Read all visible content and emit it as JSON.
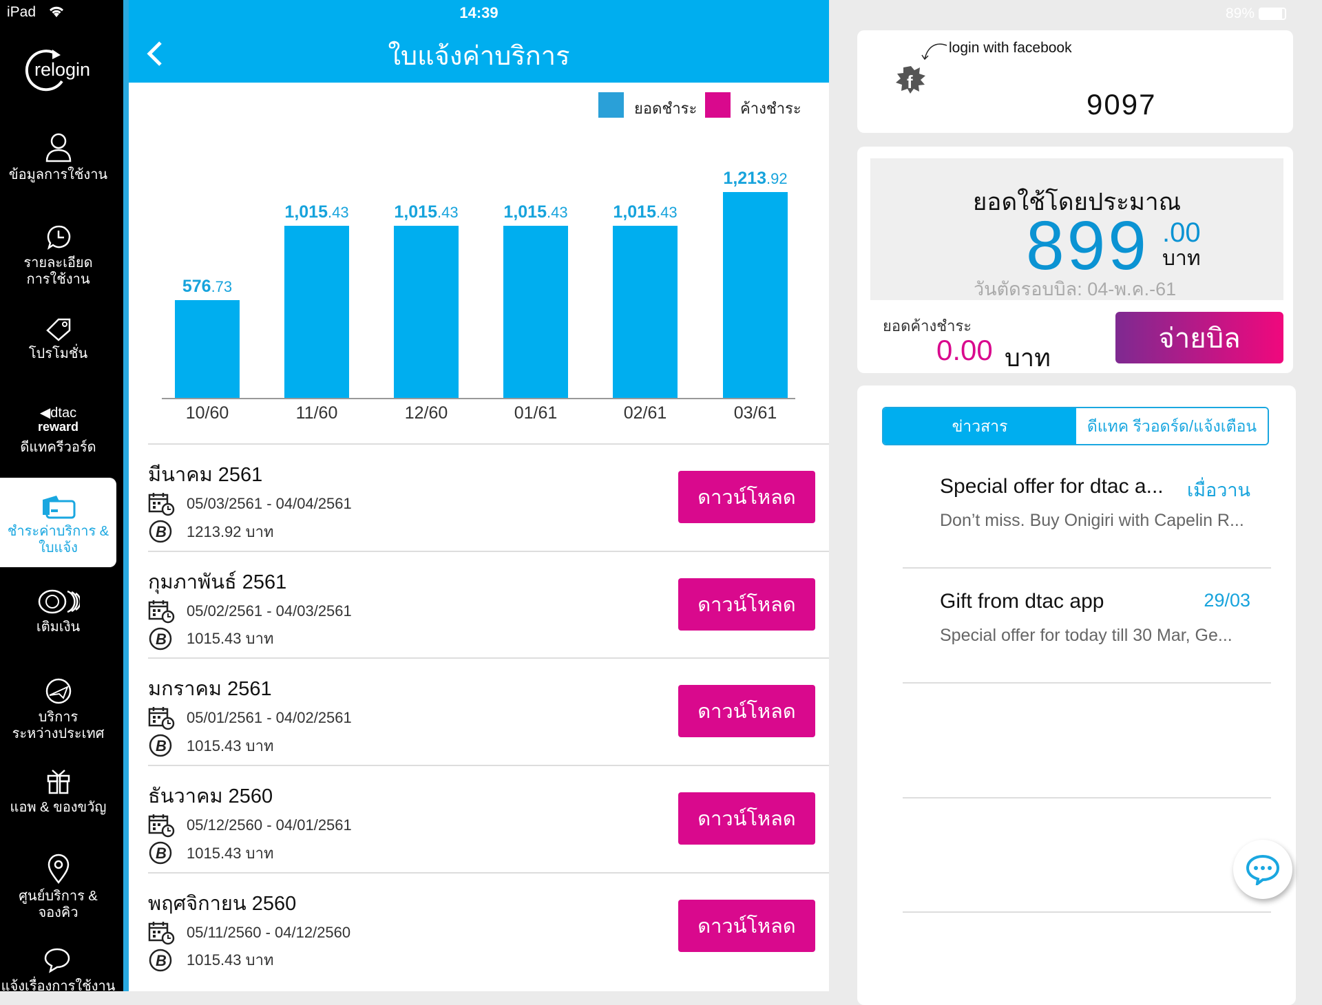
{
  "status_bar": {
    "device": "iPad",
    "time": "14:39",
    "battery": "89%"
  },
  "sidebar": {
    "relogin": "relogin",
    "items": [
      {
        "label": "ข้อมูลการใช้งาน",
        "icon": "user-icon"
      },
      {
        "label": "รายละเอียด",
        "label2": "การใช้งาน",
        "icon": "clock-chat-icon"
      },
      {
        "label": "โปรโมชั่น",
        "icon": "tag-icon"
      },
      {
        "logo_top": "dtac",
        "logo_bottom": "reward",
        "label": "ดีแทครีวอร์ด",
        "icon": "dtac-reward-logo"
      },
      {
        "label": "ชำระค่าบริการ &",
        "label2": "ใบแจ้ง",
        "icon": "card-icon",
        "active": true
      },
      {
        "label": "เติมเงิน",
        "icon": "coins-icon"
      },
      {
        "label": "บริการ",
        "label2": "ระหว่างประเทศ",
        "icon": "globe-plane-icon"
      },
      {
        "label": "แอพ & ของขวัญ",
        "icon": "gift-icon"
      },
      {
        "label": "ศูนย์บริการ &",
        "label2": "จองคิว",
        "icon": "location-pin-icon"
      },
      {
        "label": "แจ้งเรื่องการใช้งาน",
        "icon": "chat-icon"
      }
    ]
  },
  "header": {
    "title": "ใบแจ้งค่าบริการ",
    "back_icon": "chevron-left-icon"
  },
  "legend": {
    "paid": "ยอดชำระ",
    "outstanding": "ค้างชำระ"
  },
  "colors": {
    "primary": "#00aeef",
    "pink": "#d9098d",
    "paid": "#2aa0d8",
    "outstanding": "#d9098d"
  },
  "chart_data": {
    "type": "bar",
    "categories": [
      "10/60",
      "11/60",
      "12/60",
      "01/61",
      "02/61",
      "03/61"
    ],
    "series": [
      {
        "name": "ยอดชำระ",
        "values": [
          576.73,
          1015.43,
          1015.43,
          1015.43,
          1015.43,
          1213.92
        ]
      }
    ],
    "ylim": [
      0,
      1300
    ],
    "grid": false,
    "legend": "top-right"
  },
  "bills": [
    {
      "month": "มีนาคม 2561",
      "period": "05/03/2561 - 04/04/2561",
      "amount": "1213.92 บาท",
      "button": "ดาวน์โหลด"
    },
    {
      "month": "กุมภาพันธ์ 2561",
      "period": "05/02/2561 - 04/03/2561",
      "amount": "1015.43 บาท",
      "button": "ดาวน์โหลด"
    },
    {
      "month": "มกราคม 2561",
      "period": "05/01/2561 - 04/02/2561",
      "amount": "1015.43 บาท",
      "button": "ดาวน์โหลด"
    },
    {
      "month": "ธันวาคม 2560",
      "period": "05/12/2560 - 04/01/2561",
      "amount": "1015.43 บาท",
      "button": "ดาวน์โหลด"
    },
    {
      "month": "พฤศจิกายน 2560",
      "period": "05/11/2560 - 04/12/2560",
      "amount": "1015.43 บาท",
      "button": "ดาวน์โหลด"
    }
  ],
  "account": {
    "facebook_label": "login with facebook",
    "number": "9097"
  },
  "usage": {
    "title": "ยอดใช้โดยประมาณ",
    "amount": "899",
    "decimals": ".00",
    "unit": "บาท",
    "cycle": "วันตัดรอบบิล: 04-พ.ค.-61",
    "outstanding_label": "ยอดค้างชำระ",
    "outstanding_amount": "0.00",
    "outstanding_unit": "บาท",
    "pay_button": "จ่ายบิล"
  },
  "news": {
    "tabs": [
      {
        "label": "ข่าวสาร",
        "active": true
      },
      {
        "label": "ดีแทค รีวอดร์ด/แจ้งเตือน",
        "active": false
      }
    ],
    "items": [
      {
        "title": "Special offer for dtac a...",
        "date": "เมื่อวาน",
        "summary": "Don’t miss. Buy Onigiri with Capelin R..."
      },
      {
        "title": "Gift from dtac app",
        "date": "29/03",
        "summary": "Special offer for today till 30 Mar, Ge..."
      }
    ]
  }
}
